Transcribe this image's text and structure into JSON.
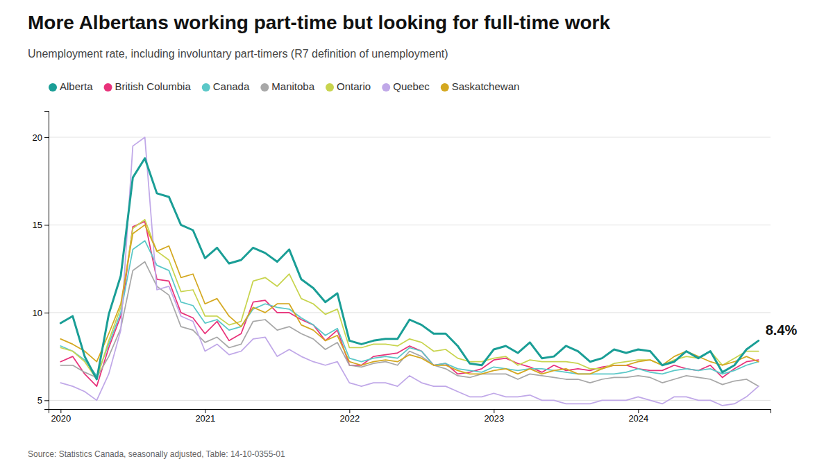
{
  "chart_data": {
    "type": "line",
    "title": "More Albertans working part-time but looking for full-time work",
    "subtitle": "Unemployment rate, including involuntary part-timers (R7 definition of unemployment)",
    "source": "Source: Statistics Canada, seasonally adjusted, Table: 14-10-0355-01",
    "annotation": "8.4%",
    "categories": [
      "2020",
      null,
      null,
      null,
      null,
      null,
      null,
      null,
      null,
      null,
      null,
      null,
      "2021",
      null,
      null,
      null,
      null,
      null,
      null,
      null,
      null,
      null,
      null,
      null,
      "2022",
      null,
      null,
      null,
      null,
      null,
      null,
      null,
      null,
      null,
      null,
      null,
      "2023",
      null,
      null,
      null,
      null,
      null,
      null,
      null,
      null,
      null,
      null,
      null,
      "2024",
      null,
      null,
      null,
      null,
      null,
      null,
      null,
      null,
      null,
      null
    ],
    "ylim": [
      4.5,
      21.5
    ],
    "yticks": [
      5,
      10,
      15,
      20
    ],
    "grid": true,
    "legend": "top",
    "series": [
      {
        "name": "Alberta",
        "color": "#1a9e96",
        "values": [
          9.4,
          9.8,
          7.5,
          6.2,
          9.9,
          12.1,
          17.7,
          18.8,
          16.8,
          16.6,
          15.0,
          14.7,
          13.1,
          13.7,
          12.8,
          13.0,
          13.7,
          13.4,
          12.9,
          13.6,
          11.9,
          11.4,
          10.6,
          11.1,
          8.4,
          8.2,
          8.4,
          8.5,
          8.5,
          9.6,
          9.3,
          8.8,
          8.8,
          8.1,
          7.1,
          7.0,
          7.9,
          8.1,
          7.7,
          8.3,
          7.4,
          7.5,
          8.1,
          7.8,
          7.2,
          7.4,
          7.9,
          7.7,
          7.9,
          7.8,
          7.0,
          7.2,
          7.8,
          7.4,
          7.8,
          6.6,
          7.0,
          7.9,
          8.4
        ]
      },
      {
        "name": "British Columbia",
        "color": "#e8327a",
        "values": [
          7.2,
          7.5,
          6.5,
          5.8,
          8.0,
          9.8,
          14.9,
          15.2,
          11.9,
          11.8,
          10.0,
          9.7,
          8.8,
          9.5,
          8.4,
          8.8,
          10.6,
          10.7,
          10.0,
          10.0,
          9.6,
          9.3,
          8.4,
          9.0,
          7.0,
          7.0,
          7.5,
          7.6,
          7.7,
          8.1,
          7.8,
          7.0,
          7.1,
          6.5,
          6.6,
          6.8,
          7.3,
          7.4,
          7.1,
          6.9,
          6.6,
          7.0,
          6.7,
          6.8,
          6.7,
          6.9,
          7.0,
          7.0,
          6.8,
          6.7,
          6.7,
          7.0,
          6.8,
          6.7,
          7.0,
          6.3,
          6.8,
          7.2,
          7.3
        ]
      },
      {
        "name": "Canada",
        "color": "#5bc8c8",
        "values": [
          8.1,
          7.8,
          7.3,
          6.4,
          8.2,
          10.0,
          13.6,
          14.1,
          12.7,
          12.4,
          10.6,
          10.4,
          9.4,
          9.6,
          9.0,
          9.2,
          10.2,
          10.5,
          10.3,
          10.2,
          9.7,
          9.3,
          8.7,
          9.1,
          7.4,
          7.2,
          7.4,
          7.5,
          7.4,
          8.0,
          7.8,
          7.0,
          7.1,
          6.8,
          6.7,
          6.6,
          6.9,
          6.8,
          6.7,
          6.8,
          6.8,
          6.7,
          6.6,
          6.5,
          6.5,
          6.5,
          6.5,
          6.6,
          6.8,
          6.6,
          6.5,
          6.7,
          6.8,
          6.7,
          6.8,
          6.5,
          6.7,
          7.0,
          7.2
        ]
      },
      {
        "name": "Manitoba",
        "color": "#a8a8a8",
        "values": [
          7.0,
          7.0,
          6.6,
          6.3,
          7.5,
          9.1,
          12.4,
          12.9,
          11.5,
          11.0,
          9.2,
          9.0,
          8.3,
          8.6,
          8.0,
          8.2,
          9.5,
          9.6,
          9.0,
          9.2,
          8.8,
          8.5,
          7.9,
          8.3,
          7.0,
          6.9,
          7.1,
          7.2,
          7.0,
          7.8,
          7.5,
          7.0,
          6.8,
          6.4,
          6.3,
          6.5,
          6.5,
          6.5,
          6.2,
          6.5,
          6.4,
          6.3,
          6.2,
          6.2,
          6.0,
          6.2,
          6.3,
          6.3,
          6.4,
          6.3,
          6.0,
          6.2,
          6.4,
          6.3,
          6.2,
          5.9,
          6.1,
          6.2,
          5.8
        ]
      },
      {
        "name": "Ontario",
        "color": "#c8d44e",
        "values": [
          8.0,
          7.8,
          7.2,
          6.2,
          8.4,
          10.3,
          14.8,
          15.3,
          13.5,
          13.0,
          11.2,
          11.3,
          9.8,
          9.8,
          9.3,
          9.5,
          11.8,
          12.0,
          11.5,
          12.2,
          10.8,
          10.5,
          9.9,
          10.2,
          8.0,
          8.0,
          8.2,
          8.2,
          8.1,
          8.5,
          8.3,
          7.8,
          7.9,
          7.4,
          7.2,
          7.2,
          7.4,
          7.5,
          7.0,
          7.3,
          7.2,
          7.2,
          7.2,
          7.1,
          6.8,
          6.8,
          7.1,
          7.2,
          7.3,
          7.3,
          7.0,
          7.3,
          7.5,
          7.4,
          7.8,
          7.0,
          7.4,
          7.8,
          7.8
        ]
      },
      {
        "name": "Quebec",
        "color": "#c0a8e8",
        "values": [
          6.0,
          5.8,
          5.5,
          5.0,
          6.5,
          9.0,
          19.5,
          20.0,
          11.3,
          11.5,
          9.8,
          9.5,
          7.8,
          8.2,
          7.6,
          7.8,
          8.5,
          8.6,
          7.5,
          7.9,
          7.5,
          7.2,
          7.0,
          7.2,
          6.0,
          5.8,
          6.0,
          6.0,
          5.8,
          6.4,
          6.0,
          5.8,
          5.8,
          5.5,
          5.2,
          5.2,
          5.4,
          5.2,
          5.2,
          5.3,
          5.0,
          5.0,
          4.8,
          4.8,
          4.8,
          5.0,
          5.0,
          5.0,
          5.2,
          5.0,
          4.8,
          5.2,
          5.2,
          5.0,
          5.0,
          4.7,
          4.8,
          5.2,
          5.8
        ]
      },
      {
        "name": "Saskatchewan",
        "color": "#d4a820",
        "values": [
          8.5,
          8.2,
          7.8,
          7.2,
          8.8,
          10.5,
          14.5,
          15.0,
          13.5,
          13.8,
          12.0,
          12.2,
          10.5,
          10.8,
          9.8,
          9.2,
          10.3,
          10.0,
          10.5,
          10.5,
          9.3,
          9.0,
          8.4,
          8.7,
          7.2,
          7.0,
          7.2,
          7.3,
          7.2,
          7.6,
          7.4,
          7.0,
          7.0,
          6.7,
          6.5,
          6.5,
          6.7,
          6.8,
          6.5,
          6.8,
          6.5,
          6.7,
          6.8,
          6.5,
          6.5,
          6.8,
          7.0,
          7.0,
          7.2,
          7.3,
          7.0,
          7.5,
          7.8,
          7.5,
          7.2,
          7.0,
          7.2,
          7.5,
          7.2
        ]
      }
    ]
  }
}
